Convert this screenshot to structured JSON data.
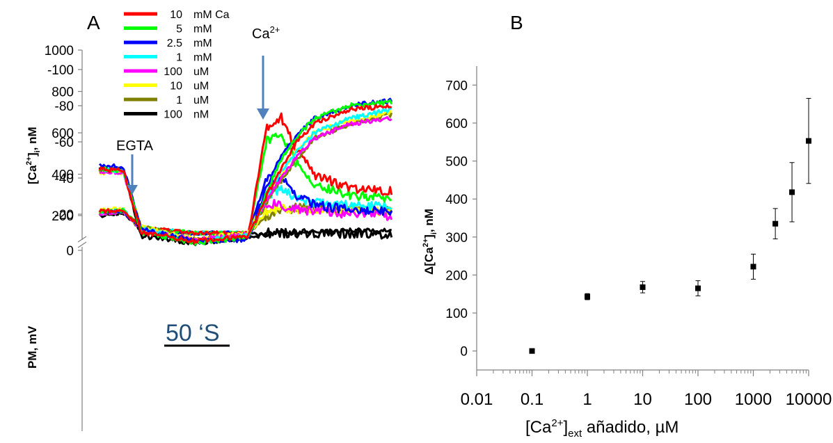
{
  "chart_data": [
    {
      "type": "line",
      "panel_label": "A",
      "upper": {
        "ylabel": "[Ca",
        "ylabel_sup": "2+",
        "ylabel_tail": "]",
        "ylabel_sub": "i",
        "ylabel_unit": ", nM",
        "ylim": [
          100,
          1000
        ],
        "yticks": [
          "200",
          "400",
          "600",
          "800",
          "1000"
        ]
      },
      "lower": {
        "ylabel": "PM, mV",
        "ylim": [
          -100,
          0
        ],
        "yticks": [
          "0",
          "-20",
          "-40",
          "-60",
          "-80",
          "-100"
        ]
      },
      "scale_bar_label": "50 ‘S",
      "annotations": {
        "egta": "EGTA",
        "ca_base": "Ca",
        "ca_sup": "2+"
      },
      "legend": [
        {
          "num": "10",
          "unit": "mM Ca",
          "color": "#ff0000"
        },
        {
          "num": "5",
          "unit": "mM",
          "color": "#00ff00"
        },
        {
          "num": "2.5",
          "unit": "mM",
          "color": "#0000ff"
        },
        {
          "num": "1",
          "unit": "mM",
          "color": "#00ffff"
        },
        {
          "num": "100",
          "unit": "uM",
          "color": "#ff00ff"
        },
        {
          "num": "10",
          "unit": "uM",
          "color": "#ffff00"
        },
        {
          "num": "1",
          "unit": "uM",
          "color": "#808000"
        },
        {
          "num": "100",
          "unit": "nM",
          "color": "#000000"
        }
      ],
      "x_time_s": [
        0,
        20,
        35,
        80,
        125,
        140,
        152,
        165,
        180,
        210,
        245
      ],
      "series": [
        {
          "color": "#ff0000",
          "ca_nM": [
            220,
            225,
            140,
            115,
            115,
            630,
            680,
            520,
            400,
            330,
            320
          ],
          "pm_mV": [
            -45,
            -44,
            -10,
            -5,
            -8,
            -30,
            -45,
            -60,
            -70,
            -78,
            -80
          ]
        },
        {
          "color": "#00ff00",
          "ca_nM": [
            220,
            225,
            140,
            115,
            115,
            560,
            600,
            450,
            350,
            300,
            280
          ],
          "pm_mV": [
            -45,
            -44,
            -10,
            -4,
            -7,
            -32,
            -50,
            -62,
            -73,
            -80,
            -82
          ]
        },
        {
          "color": "#0000ff",
          "ca_nM": [
            215,
            220,
            135,
            115,
            115,
            380,
            380,
            300,
            250,
            230,
            220
          ],
          "pm_mV": [
            -47,
            -46,
            -12,
            -5,
            -6,
            -35,
            -52,
            -63,
            -73,
            -80,
            -83
          ]
        },
        {
          "color": "#00ffff",
          "ca_nM": [
            220,
            225,
            140,
            115,
            115,
            300,
            330,
            280,
            260,
            250,
            240
          ],
          "pm_mV": [
            -45,
            -44,
            -12,
            -5,
            -8,
            -30,
            -43,
            -55,
            -65,
            -73,
            -78
          ]
        },
        {
          "color": "#ff00ff",
          "ca_nM": [
            210,
            220,
            135,
            115,
            115,
            260,
            250,
            230,
            220,
            210,
            200
          ],
          "pm_mV": [
            -44,
            -43,
            -11,
            -6,
            -9,
            -28,
            -40,
            -52,
            -62,
            -70,
            -73
          ]
        },
        {
          "color": "#ffff00",
          "ca_nM": [
            230,
            230,
            140,
            115,
            115,
            220,
            240,
            230,
            230,
            225,
            220
          ],
          "pm_mV": [
            -43,
            -43,
            -13,
            -6,
            -10,
            -30,
            -42,
            -55,
            -65,
            -72,
            -76
          ]
        },
        {
          "color": "#808000",
          "ca_nM": [
            215,
            215,
            135,
            115,
            115,
            200,
            220,
            240,
            235,
            230,
            225
          ],
          "pm_mV": [
            -44,
            -44,
            -13,
            -6,
            -9,
            -26,
            -38,
            -50,
            -62,
            -70,
            -75
          ]
        },
        {
          "color": "#000000",
          "ca_nM": [
            200,
            210,
            130,
            115,
            110,
            115,
            115,
            115,
            115,
            112,
            110
          ],
          "pm_mV": [
            -45,
            -44,
            -8,
            -4,
            -7,
            -9,
            -10,
            -10,
            -10,
            -11,
            -11
          ]
        }
      ]
    },
    {
      "type": "scatter",
      "panel_label": "B",
      "ylabel_delta": "Δ[Ca",
      "ylabel_sup": "2+",
      "ylabel_tail": "]",
      "ylabel_sub": "i",
      "ylabel_unit": ", nM",
      "xlabel_base": "[Ca",
      "xlabel_sup": "2+",
      "xlabel_tail": "]",
      "xlabel_sub": "ext",
      "xlabel_rest": " añadido, µM",
      "xscale": "log",
      "xlim": [
        0.01,
        10000
      ],
      "ylim": [
        -50,
        750
      ],
      "xticks": [
        "0.01",
        "0.1",
        "1",
        "10",
        "100",
        "1000",
        "10000"
      ],
      "yticks": [
        "0",
        "100",
        "200",
        "300",
        "400",
        "500",
        "600",
        "700"
      ],
      "x": [
        0.1,
        1,
        10,
        100,
        1000,
        2500,
        5000,
        10000
      ],
      "y": [
        0,
        143,
        168,
        165,
        222,
        335,
        418,
        553
      ],
      "err": [
        5,
        8,
        15,
        20,
        33,
        40,
        78,
        112
      ]
    }
  ]
}
